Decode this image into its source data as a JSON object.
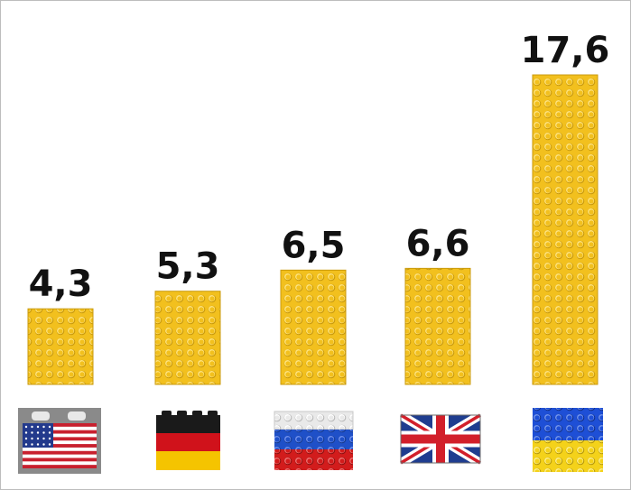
{
  "chart_data": {
    "type": "bar",
    "categories": [
      "USA",
      "Germany",
      "Russia",
      "United Kingdom",
      "Ukraine"
    ],
    "values": [
      4.3,
      5.3,
      6.5,
      6.6,
      17.6
    ],
    "value_labels": [
      "4,3",
      "5,3",
      "6,5",
      "6,6",
      "17,6"
    ],
    "title": "",
    "xlabel": "",
    "ylabel": "",
    "ylim": [
      0,
      17.6
    ],
    "grid": false,
    "legend": "none",
    "bar_style": "yellow lego bricks",
    "category_icons": [
      "flag-usa-brick",
      "flag-germany-brick",
      "flag-russia-brick",
      "flag-uk-brick",
      "flag-ukraine-brick"
    ]
  },
  "colors": {
    "brick_yellow": "#f2c01e",
    "brick_yellow_light": "#ffe27a",
    "brick_yellow_dark": "#c99a0c",
    "usa_red": "#c8202e",
    "usa_blue": "#233a8c",
    "germany_black": "#1a1a1a",
    "germany_red": "#d0121b",
    "germany_gold": "#f5c400",
    "russia_white": "#f2f2f2",
    "russia_blue": "#1f50c8",
    "russia_red": "#d21c1c",
    "uk_blue": "#1f3d8f",
    "uk_red": "#d21f2a",
    "ukraine_blue": "#1e4fd6",
    "ukraine_yellow": "#f4d21a"
  }
}
